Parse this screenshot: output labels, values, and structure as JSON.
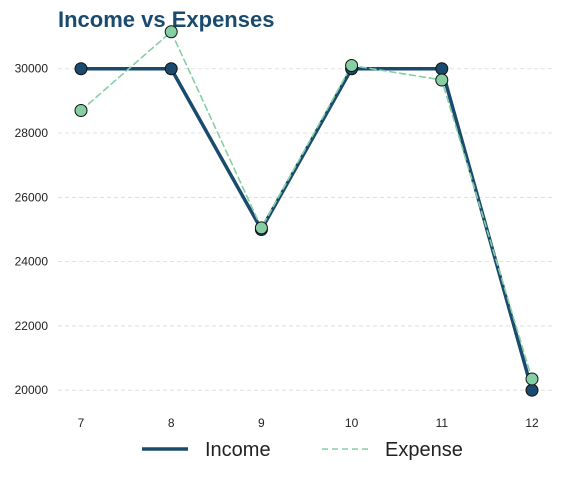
{
  "chart_data": {
    "type": "line",
    "title": "Income vs Expenses",
    "xlabel": "",
    "ylabel": "",
    "x": [
      7,
      8,
      9,
      10,
      11,
      12
    ],
    "ylim": [
      19400,
      31500
    ],
    "yticks": [
      20000,
      22000,
      24000,
      26000,
      28000,
      30000
    ],
    "grid": "y-dashed",
    "legend": "bottom-center",
    "series": [
      {
        "name": "Income",
        "values": [
          30000,
          30000,
          25000,
          30000,
          30000,
          20000
        ],
        "color": "#1a4b6e",
        "style": "solid",
        "marker_fill": "#1a4b6e"
      },
      {
        "name": "Expense",
        "values": [
          28700,
          31150,
          25050,
          30100,
          29650,
          20350
        ],
        "color": "#86cfa5",
        "style": "dashed",
        "marker_fill": "#86cfa5"
      }
    ]
  }
}
